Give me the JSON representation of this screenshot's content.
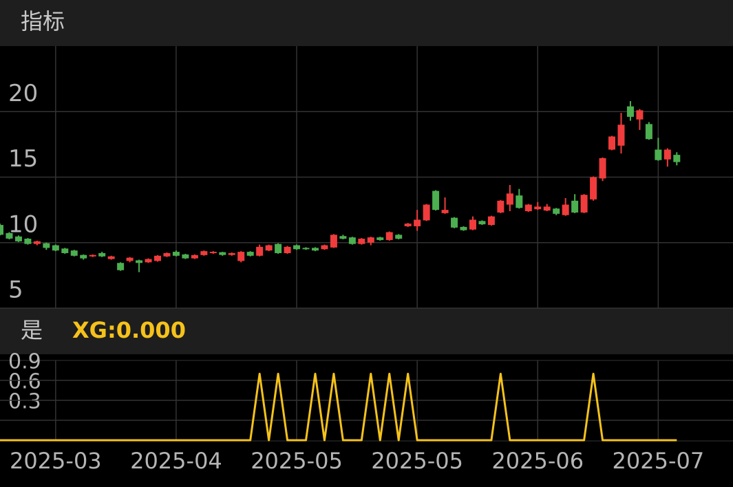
{
  "chart_data": [
    {
      "type": "candlestick",
      "title": "指标",
      "up_color": "#f03c3c",
      "down_color": "#4caf50",
      "ylim": [
        5,
        25
      ],
      "yticks": [
        5,
        10,
        15,
        20
      ],
      "grid": true,
      "categories": [
        null,
        null,
        null,
        null,
        null,
        null,
        "2025-03",
        null,
        null,
        null,
        null,
        null,
        null,
        null,
        null,
        null,
        null,
        null,
        null,
        "2025-04",
        null,
        null,
        null,
        null,
        null,
        null,
        null,
        null,
        null,
        null,
        null,
        null,
        "2025-05",
        null,
        null,
        null,
        null,
        null,
        null,
        null,
        null,
        null,
        null,
        null,
        null,
        "2025-05",
        null,
        null,
        null,
        null,
        null,
        null,
        null,
        null,
        null,
        null,
        null,
        null,
        "2025-06",
        null,
        null,
        null,
        null,
        null,
        null,
        null,
        null,
        null,
        null,
        null,
        null,
        "2025-07",
        null,
        null
      ],
      "open": [
        11.35,
        10.73,
        10.47,
        10.3,
        9.9,
        9.95,
        9.8,
        9.55,
        9.4,
        9.06,
        8.95,
        9.2,
        8.75,
        8.45,
        8.6,
        8.65,
        8.5,
        8.6,
        8.95,
        9.3,
        9.1,
        8.8,
        9.05,
        9.2,
        9.27,
        9.06,
        8.6,
        9.3,
        9.0,
        9.4,
        9.9,
        9.2,
        9.8,
        9.6,
        9.6,
        9.5,
        9.63,
        10.5,
        10.4,
        9.9,
        10.0,
        10.4,
        10.2,
        10.6,
        11.25,
        11.25,
        11.7,
        13.95,
        12.25,
        11.9,
        11.2,
        11.0,
        11.65,
        11.35,
        12.3,
        12.9,
        13.6,
        12.4,
        12.55,
        12.45,
        12.6,
        12.1,
        13.2,
        12.3,
        13.3,
        14.9,
        17.1,
        17.4,
        20.4,
        19.4,
        19.05,
        17.1,
        16.35,
        16.7
      ],
      "high": [
        11.45,
        10.8,
        10.55,
        10.35,
        10.15,
        10.0,
        9.85,
        9.6,
        9.45,
        9.1,
        9.1,
        9.3,
        9.0,
        8.5,
        8.9,
        8.7,
        8.8,
        9.05,
        9.25,
        9.4,
        9.15,
        9.1,
        9.4,
        9.35,
        9.3,
        9.25,
        9.35,
        9.35,
        9.85,
        9.85,
        9.95,
        9.75,
        9.85,
        9.65,
        9.65,
        9.85,
        10.65,
        10.6,
        10.45,
        10.35,
        10.45,
        10.45,
        10.85,
        10.65,
        11.5,
        12.5,
        12.95,
        14.0,
        13.45,
        11.95,
        11.25,
        12.0,
        11.7,
        12.05,
        13.25,
        14.4,
        14.1,
        12.95,
        13.1,
        12.95,
        12.65,
        13.4,
        13.7,
        13.7,
        15.05,
        16.5,
        18.15,
        19.9,
        20.8,
        20.2,
        19.2,
        18.0,
        17.2,
        16.9
      ],
      "low": [
        10.55,
        10.25,
        10.05,
        9.85,
        9.8,
        9.45,
        9.35,
        9.15,
        8.95,
        8.7,
        8.9,
        8.9,
        8.7,
        7.85,
        8.5,
        7.75,
        8.45,
        8.55,
        8.9,
        8.95,
        8.75,
        8.75,
        9.0,
        9.15,
        9.0,
        9.0,
        8.5,
        8.95,
        8.95,
        9.35,
        9.15,
        9.15,
        9.45,
        9.45,
        9.35,
        9.45,
        9.6,
        10.25,
        9.85,
        9.85,
        9.8,
        10.15,
        10.15,
        10.25,
        11.2,
        10.9,
        11.65,
        12.45,
        12.2,
        11.1,
        10.9,
        10.95,
        11.35,
        11.3,
        12.25,
        12.4,
        12.6,
        12.35,
        12.5,
        12.4,
        12.1,
        12.05,
        12.25,
        12.25,
        13.2,
        14.7,
        17.05,
        16.8,
        19.3,
        18.6,
        17.85,
        16.25,
        15.8,
        15.9
      ],
      "close": [
        10.6,
        10.31,
        10.1,
        9.9,
        10.1,
        9.6,
        9.4,
        9.2,
        9.0,
        8.8,
        9.06,
        8.95,
        8.95,
        7.9,
        8.85,
        8.45,
        8.75,
        9.0,
        9.2,
        9.0,
        8.8,
        9.05,
        9.35,
        9.3,
        9.06,
        9.2,
        9.3,
        9.0,
        9.68,
        9.8,
        9.2,
        9.68,
        9.5,
        9.5,
        9.4,
        9.8,
        10.6,
        10.3,
        9.9,
        10.3,
        10.4,
        10.2,
        10.8,
        10.3,
        11.45,
        11.75,
        12.9,
        12.5,
        12.5,
        11.15,
        10.95,
        11.75,
        11.4,
        12.0,
        13.2,
        13.75,
        12.65,
        12.9,
        12.75,
        12.75,
        12.2,
        12.9,
        12.3,
        13.65,
        15.0,
        16.45,
        18.1,
        19.0,
        19.6,
        20.1,
        17.9,
        16.3,
        17.1,
        16.15
      ]
    },
    {
      "type": "line",
      "title": "是",
      "ylim": [
        0,
        1.2
      ],
      "yticks": [
        0.3,
        0.6,
        0.9
      ],
      "grid": true,
      "categories": [
        null,
        null,
        null,
        null,
        null,
        null,
        "2025-03",
        null,
        null,
        null,
        null,
        null,
        null,
        null,
        null,
        null,
        null,
        null,
        null,
        "2025-04",
        null,
        null,
        null,
        null,
        null,
        null,
        null,
        null,
        null,
        null,
        null,
        null,
        "2025-05",
        null,
        null,
        null,
        null,
        null,
        null,
        null,
        null,
        null,
        null,
        null,
        null,
        "2025-05",
        null,
        null,
        null,
        null,
        null,
        null,
        null,
        null,
        null,
        null,
        null,
        null,
        "2025-06",
        null,
        null,
        null,
        null,
        null,
        null,
        null,
        null,
        null,
        null,
        null,
        null,
        "2025-07",
        null,
        null
      ],
      "series": [
        {
          "name": "XG:0.000",
          "color": "#f5c21b",
          "values": [
            0,
            0,
            0,
            0,
            0,
            0,
            0,
            0,
            0,
            0,
            0,
            0,
            0,
            0,
            0,
            0,
            0,
            0,
            0,
            0,
            0,
            0,
            0,
            0,
            0,
            0,
            0,
            0,
            1,
            0,
            1,
            0,
            0,
            0,
            1,
            0,
            1,
            0,
            0,
            0,
            1,
            0,
            1,
            0,
            1,
            0,
            0,
            0,
            0,
            0,
            0,
            0,
            0,
            0,
            1,
            0,
            0,
            0,
            0,
            0,
            0,
            0,
            0,
            0,
            1,
            0,
            0,
            0,
            0,
            0,
            0,
            0,
            0,
            0
          ]
        }
      ]
    }
  ]
}
